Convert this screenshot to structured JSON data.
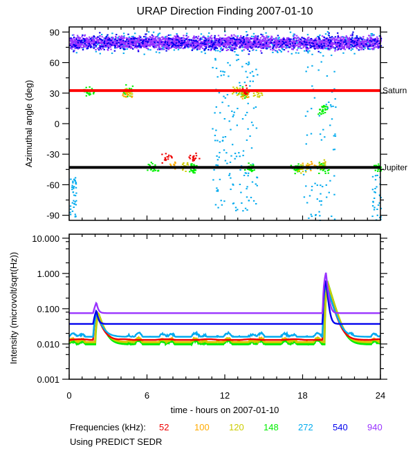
{
  "chart_data": [
    {
      "type": "scatter",
      "title": "URAP Direction Finding  2007-01-10",
      "xlabel": "time - hours on 2007-01-10",
      "ylabel": "Azimuthal angle (deg)",
      "xlim": [
        0,
        24
      ],
      "ylim": [
        -95,
        95
      ],
      "x_ticks": [
        0,
        6,
        12,
        18,
        24
      ],
      "x_tick_labels": [
        "0",
        "6",
        "12",
        "18",
        "24"
      ],
      "y_ticks": [
        90,
        60,
        30,
        0,
        -30,
        -60,
        -90
      ],
      "y_tick_labels": [
        "90",
        "60",
        "30",
        "0",
        "-30",
        "-60",
        "-90"
      ],
      "reference_lines": [
        {
          "name": "Saturn",
          "label": "Saturn",
          "value": 32.5,
          "color": "#ff0000"
        },
        {
          "name": "Jupiter",
          "label": "Jupiter",
          "value": -43,
          "color": "#000000"
        }
      ],
      "series": [
        {
          "name": "940",
          "color": "#9933ff",
          "band_center": 80,
          "band_width": 9
        },
        {
          "name": "540",
          "color": "#0000ee",
          "band_center": 80,
          "band_width": 12
        },
        {
          "name": "272",
          "color": "#00aaee",
          "band_center": 80,
          "band_width": 14
        },
        {
          "name": "148",
          "color": "#00ee00",
          "clusters": [
            [
              1.5,
              32
            ],
            [
              4.5,
              32
            ],
            [
              13.5,
              30
            ],
            [
              19.5,
              15
            ],
            [
              6.5,
              -43
            ],
            [
              9.5,
              -43
            ],
            [
              14,
              -43
            ],
            [
              17.5,
              -43
            ],
            [
              19.5,
              -43
            ],
            [
              23.8,
              -43
            ]
          ]
        },
        {
          "name": "120",
          "color": "#cccc00",
          "clusters": [
            [
              4.5,
              32
            ],
            [
              12.8,
              32
            ],
            [
              14.5,
              30
            ],
            [
              9,
              -40
            ],
            [
              18,
              -43
            ],
            [
              19.5,
              -40
            ]
          ]
        },
        {
          "name": "100",
          "color": "#ffaa00",
          "clusters": [
            [
              4.5,
              30
            ],
            [
              13.5,
              28
            ],
            [
              8,
              -40
            ],
            [
              18.5,
              -40
            ]
          ]
        },
        {
          "name": "52",
          "color": "#ee0000",
          "clusters": [
            [
              7.5,
              -33
            ],
            [
              9.5,
              -33
            ],
            [
              13.5,
              32
            ]
          ]
        }
      ]
    },
    {
      "type": "line",
      "xlabel": "time - hours on 2007-01-10",
      "ylabel": "Intensity (microvolt/sqrt(Hz))",
      "xlim": [
        0,
        24
      ],
      "ylim": [
        0.001,
        13
      ],
      "yscale": "log",
      "y_ticks": [
        10,
        1,
        0.1,
        0.01,
        0.001
      ],
      "y_tick_labels": [
        "10.000",
        "1.000",
        "0.100",
        "0.010",
        "0.001"
      ],
      "series": [
        {
          "name": "940",
          "color": "#9933ff",
          "baseline": 0.075
        },
        {
          "name": "540",
          "color": "#0000ee",
          "baseline": 0.037
        },
        {
          "name": "272",
          "color": "#00aaee",
          "baseline": 0.016
        },
        {
          "name": "52",
          "color": "#ee0000",
          "baseline": 0.013
        },
        {
          "name": "120",
          "color": "#cccc00",
          "baseline": 0.011
        },
        {
          "name": "100",
          "color": "#ffaa00",
          "baseline": 0.0115
        },
        {
          "name": "148",
          "color": "#00ee00",
          "baseline": 0.0098
        }
      ],
      "bursts": [
        {
          "hour": 2.1,
          "peak": 0.15
        },
        {
          "hour": 19.8,
          "peak": 1.05
        }
      ]
    }
  ],
  "legend": {
    "label": "Frequencies (kHz):",
    "items": [
      {
        "label": "52",
        "color": "#ee0000"
      },
      {
        "label": "100",
        "color": "#ffaa00"
      },
      {
        "label": "120",
        "color": "#cccc00"
      },
      {
        "label": "148",
        "color": "#00ee00"
      },
      {
        "label": "272",
        "color": "#00aaee"
      },
      {
        "label": "540",
        "color": "#0000ee"
      },
      {
        "label": "940",
        "color": "#9933ff"
      }
    ]
  },
  "note": "Using PREDICT SEDR"
}
